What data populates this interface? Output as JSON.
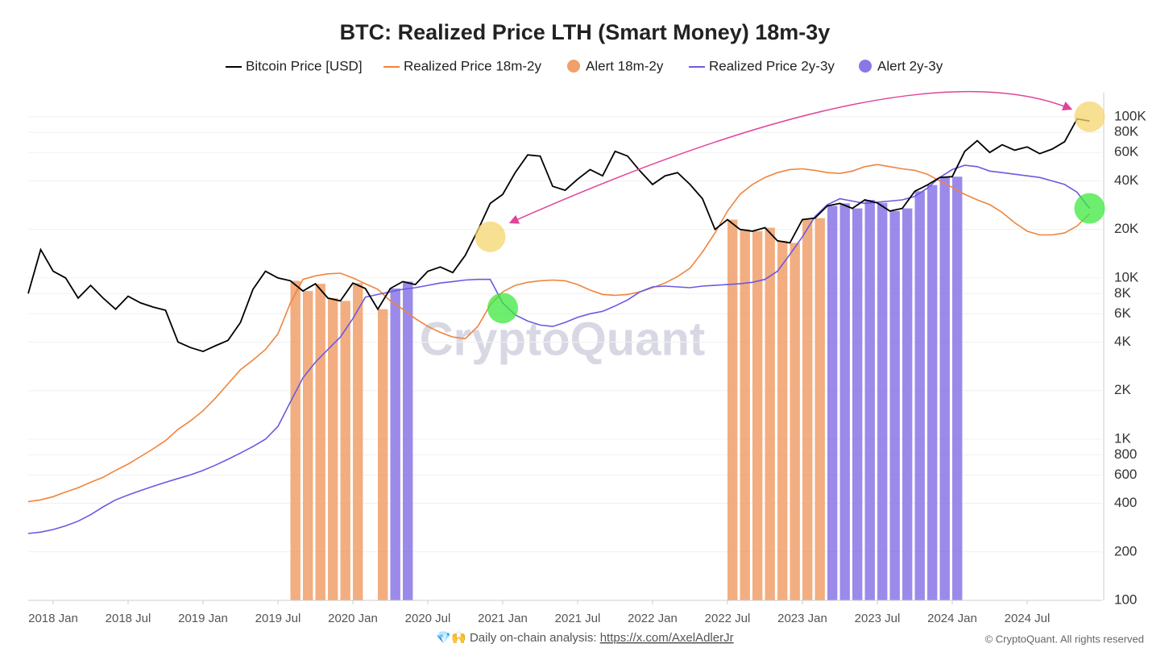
{
  "chart_data": {
    "type": "line",
    "title": "BTC: Realized Price LTH (Smart Money) 18m-3y",
    "watermark": "CryptoQuant",
    "log_y": true,
    "grid": true,
    "x": [
      "2017-11",
      "2017-12",
      "2018-01",
      "2018-02",
      "2018-03",
      "2018-04",
      "2018-05",
      "2018-06",
      "2018-07",
      "2018-08",
      "2018-09",
      "2018-10",
      "2018-11",
      "2018-12",
      "2019-01",
      "2019-02",
      "2019-03",
      "2019-04",
      "2019-05",
      "2019-06",
      "2019-07",
      "2019-08",
      "2019-09",
      "2019-10",
      "2019-11",
      "2019-12",
      "2020-01",
      "2020-02",
      "2020-03",
      "2020-04",
      "2020-05",
      "2020-06",
      "2020-07",
      "2020-08",
      "2020-09",
      "2020-10",
      "2020-11",
      "2020-12",
      "2021-01",
      "2021-02",
      "2021-03",
      "2021-04",
      "2021-05",
      "2021-06",
      "2021-07",
      "2021-08",
      "2021-09",
      "2021-10",
      "2021-11",
      "2021-12",
      "2022-01",
      "2022-02",
      "2022-03",
      "2022-04",
      "2022-05",
      "2022-06",
      "2022-07",
      "2022-08",
      "2022-09",
      "2022-10",
      "2022-11",
      "2022-12",
      "2023-01",
      "2023-02",
      "2023-03",
      "2023-04",
      "2023-05",
      "2023-06",
      "2023-07",
      "2023-08",
      "2023-09",
      "2023-10",
      "2023-11",
      "2023-12",
      "2024-01",
      "2024-02",
      "2024-03",
      "2024-04",
      "2024-05",
      "2024-06",
      "2024-07",
      "2024-08",
      "2024-09",
      "2024-10",
      "2024-11",
      "2024-12"
    ],
    "series": [
      {
        "name": "Bitcoin Price [USD]",
        "color": "#000000",
        "values": [
          8000,
          15000,
          11000,
          10000,
          7500,
          9000,
          7500,
          6400,
          7700,
          7000,
          6600,
          6300,
          4000,
          3700,
          3500,
          3800,
          4100,
          5300,
          8500,
          11000,
          10000,
          9600,
          8300,
          9200,
          7500,
          7200,
          9300,
          8600,
          6400,
          8600,
          9500,
          9100,
          11000,
          11700,
          10800,
          13800,
          19700,
          29000,
          33000,
          45000,
          58000,
          57000,
          37000,
          35000,
          41000,
          47000,
          43000,
          61000,
          57000,
          46000,
          38000,
          43000,
          45000,
          38000,
          31000,
          20000,
          23000,
          20000,
          19500,
          20500,
          17000,
          16500,
          23000,
          23500,
          28000,
          29000,
          27000,
          30500,
          29200,
          26000,
          27000,
          34500,
          37700,
          42000,
          42500,
          61000,
          71000,
          60000,
          67000,
          62000,
          65000,
          59000,
          63000,
          70000,
          97000,
          94000
        ]
      },
      {
        "name": "Realized Price 18m-2y",
        "color": "#f0843c",
        "values": [
          410,
          420,
          440,
          470,
          500,
          540,
          580,
          640,
          700,
          780,
          870,
          980,
          1150,
          1300,
          1500,
          1800,
          2200,
          2700,
          3100,
          3600,
          4500,
          7000,
          9800,
          10300,
          10600,
          10700,
          10000,
          9200,
          8500,
          7200,
          6400,
          5600,
          5000,
          4600,
          4300,
          4200,
          5000,
          6800,
          8200,
          9000,
          9400,
          9600,
          9700,
          9600,
          9100,
          8400,
          7900,
          7800,
          7900,
          8200,
          8700,
          9300,
          10200,
          11500,
          14500,
          19000,
          26000,
          33000,
          38000,
          42000,
          45000,
          47000,
          47500,
          46500,
          45000,
          44500,
          46000,
          49000,
          50500,
          49000,
          47500,
          46500,
          44000,
          40000,
          36500,
          33000,
          30500,
          28500,
          25500,
          22000,
          19500,
          18500,
          18500,
          19000,
          21000,
          25000
        ]
      },
      {
        "name": "Realized Price 2y-3y",
        "color": "#6a5ae0",
        "values": [
          260,
          265,
          275,
          290,
          310,
          340,
          380,
          420,
          450,
          480,
          510,
          540,
          570,
          600,
          640,
          690,
          750,
          820,
          900,
          1000,
          1200,
          1700,
          2400,
          3000,
          3600,
          4300,
          5600,
          7600,
          7900,
          8200,
          8500,
          8700,
          9000,
          9300,
          9500,
          9700,
          9800,
          9800,
          7000,
          5900,
          5400,
          5100,
          5000,
          5300,
          5700,
          6000,
          6200,
          6700,
          7300,
          8200,
          8800,
          8900,
          8800,
          8700,
          8900,
          9000,
          9100,
          9200,
          9400,
          9800,
          11000,
          14000,
          18000,
          24000,
          28500,
          31000,
          30000,
          29000,
          29500,
          30000,
          30500,
          32000,
          36000,
          42000,
          47000,
          50000,
          49000,
          46000,
          45000,
          44000,
          43000,
          42000,
          40000,
          38000,
          34000,
          27000
        ]
      }
    ],
    "alerts": [
      {
        "name": "Alert 18m-2y",
        "color": "#f0a06a",
        "ranges": [
          [
            "2019-08",
            "2020-01"
          ],
          [
            "2020-03",
            "2020-03"
          ],
          [
            "2022-07",
            "2023-02"
          ]
        ]
      },
      {
        "name": "Alert 2y-3y",
        "color": "#8a76e6",
        "ranges": [
          [
            "2020-04",
            "2020-05"
          ],
          [
            "2023-03",
            "2024-01"
          ]
        ]
      }
    ],
    "highlights": [
      {
        "x": "2020-12",
        "y": 18000,
        "color": "#f5d56e"
      },
      {
        "x": "2021-01",
        "y": 6500,
        "color": "#3ee83e"
      },
      {
        "x": "2024-12",
        "y": 100000,
        "color": "#f5d56e"
      },
      {
        "x": "2024-12",
        "y": 27000,
        "color": "#3ee83e"
      }
    ],
    "xlim": [
      "2017-11",
      "2025-01"
    ],
    "xticks": [
      {
        "value": "2018-01",
        "label": "2018 Jan"
      },
      {
        "value": "2018-07",
        "label": "2018 Jul"
      },
      {
        "value": "2019-01",
        "label": "2019 Jan"
      },
      {
        "value": "2019-07",
        "label": "2019 Jul"
      },
      {
        "value": "2020-01",
        "label": "2020 Jan"
      },
      {
        "value": "2020-07",
        "label": "2020 Jul"
      },
      {
        "value": "2021-01",
        "label": "2021 Jan"
      },
      {
        "value": "2021-07",
        "label": "2021 Jul"
      },
      {
        "value": "2022-01",
        "label": "2022 Jan"
      },
      {
        "value": "2022-07",
        "label": "2022 Jul"
      },
      {
        "value": "2023-01",
        "label": "2023 Jan"
      },
      {
        "value": "2023-07",
        "label": "2023 Jul"
      },
      {
        "value": "2024-01",
        "label": "2024 Jan"
      },
      {
        "value": "2024-07",
        "label": "2024 Jul"
      }
    ],
    "ylim": [
      100,
      141000
    ],
    "yticks": [
      100,
      200,
      400,
      600,
      800,
      {
        "value": 1000,
        "label": "1K"
      },
      {
        "value": 2000,
        "label": "2K"
      },
      {
        "value": 4000,
        "label": "4K"
      },
      {
        "value": 6000,
        "label": "6K"
      },
      {
        "value": 8000,
        "label": "8K"
      },
      {
        "value": 10000,
        "label": "10K"
      },
      {
        "value": 20000,
        "label": "20K"
      },
      {
        "value": 40000,
        "label": "40K"
      },
      {
        "value": 60000,
        "label": "60K"
      },
      {
        "value": 80000,
        "label": "80K"
      },
      {
        "value": 100000,
        "label": "100K"
      }
    ],
    "footer": {
      "text": "💎🙌 Daily on-chain analysis: ",
      "link": "https://x.com/AxelAdlerJr",
      "copyright": "© CryptoQuant. All rights reserved"
    }
  }
}
